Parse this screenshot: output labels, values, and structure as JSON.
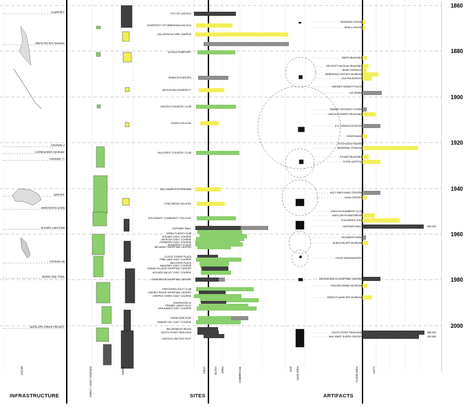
{
  "sections": {
    "infrastructure": "INFRASTRUCTURE",
    "sites": "SITES",
    "artifacts": "ARTIFACTS"
  },
  "years": [
    "1860",
    "1880",
    "1900",
    "1920",
    "1940",
    "1960",
    "1980",
    "2000"
  ],
  "colors": {
    "yellow": "#f2ef5a",
    "green": "#8ccf6d",
    "dark": "#3f3f3f",
    "gray": "#8f8f8f"
  },
  "infrastructure_labels": [
    "CHAPERET",
    "UNION PACIFIC RAILWAY",
    "HIGHWAY 2",
    "CORNHUSKER HIGHWAY",
    "HIGHWAY 77",
    "AIRPORT",
    "ANNEXATION (1950)",
    "HOLMES LAKE DAM",
    "HIGHWAY 80",
    "MOPAC RAIL TRAIL",
    "ANTELOPE CREEK PROJECT"
  ],
  "site_labels": [
    "CITY OF LINCOLN",
    "UNIVERSITY OF NEBRASKA LINCOLN",
    "UNL AGRICULTURE CAMPUS",
    "WYUKA CEMETERY",
    "GRAIN ELEVATORS",
    "WESLEYAN UNIVERSITY",
    "LINCOLN COUNTRY CLUB",
    "UNION COLLEGE",
    "HILLCREST COUNTRY CLUB",
    "UNL CAMPUS EXTENSION",
    "CONCORDIA COLLEGE",
    "SOUTHEAST COMMUNITY COLLEGE",
    "GATEWAY MALL",
    "KNOLLS GOLF CLUB",
    "HOLMES GOLF COURSE",
    "JIM ROSS GOLF COURSE",
    "PIONEERS GOLF COURSE",
    "UNIVERSITY PLACE",
    "BELMONT SHOPPING CENTER",
    "CLOCK TOWER PLAZA",
    "PINE LAKE GOLF COURSE",
    "VAN DORN PLAZA",
    "MAHONEY GOLF COURSE",
    "INDIAN VILLAGE SHOPPING CENTER",
    "HOLDEN VALLEY GOLF COURSE",
    "EDGEWOOD SHOPPING CENTER",
    "FIRETHORN GOLF CLUB",
    "CHENEY RIDGE SHOPPING CENTER",
    "CRIPPLE CREEK GOLF COURSE",
    "EDGEWOOD III",
    "PRAIRIE LAKES GOLF",
    "HIGHLANDS GOLF COURSE",
    "FURNITURE ROW",
    "YANKEE HILL GOLF COURSE",
    "WILDERNESS RIDGE",
    "SOUTH POINT PAVILIONS",
    "LINCOLN LINCOLN GOLF"
  ],
  "artifact_labels": [
    "KENNARD HOUSE",
    "KRULL HOUSE",
    "SMITH BUILDING",
    "SECURITY MUTUAL BUILDING",
    "BARR TERRACE",
    "NEBRASKA HISTORY MUSEUM",
    "CULTRA DUPLEX",
    "HARMER HAMLET PLACE",
    "AG GRAIN",
    "ZIMMER GROCERY STORE",
    "LINCOLN LIBERTY BUILDING",
    "A.G. GRAIN ELEVATOR",
    "STATE BANK",
    "HITCHCOCK HOUSE",
    "MEMORIAL STADIUM",
    "STUART BUILDING",
    "STATE CAPITOL",
    "ASLT SWITCHING STATION",
    "LOAN CENTER",
    "LINCOLN NUMBERS CLUB",
    "MUELLER PLANETARIUM",
    "CHILDREN'S ZOO",
    "GATEWAY MALL",
    "PIONEERS PARK",
    "SHELDON ART MUSEUM",
    "HYDE OBSERVATORY",
    "EDGEWOOD III SHOPPING CENTER",
    "FOLLIES DINING MUSEUM",
    "GREAT PLAINS ART MUSEUM",
    "SOUTH POINT PAVILIONS",
    "WAL-MART SUPER CENTER"
  ],
  "figure_values": [
    "500,000",
    "800,000",
    "550,000",
    "400,000"
  ],
  "axis_captions": [
    "DATUM",
    "PARKS + GOLF COURSES",
    "ZONED",
    "SOLID",
    "ENTRY",
    "OPEN",
    "COMMERCIAL",
    "SIZE",
    "LAND AREA",
    "FLOOR AREA",
    "UNITS"
  ]
}
